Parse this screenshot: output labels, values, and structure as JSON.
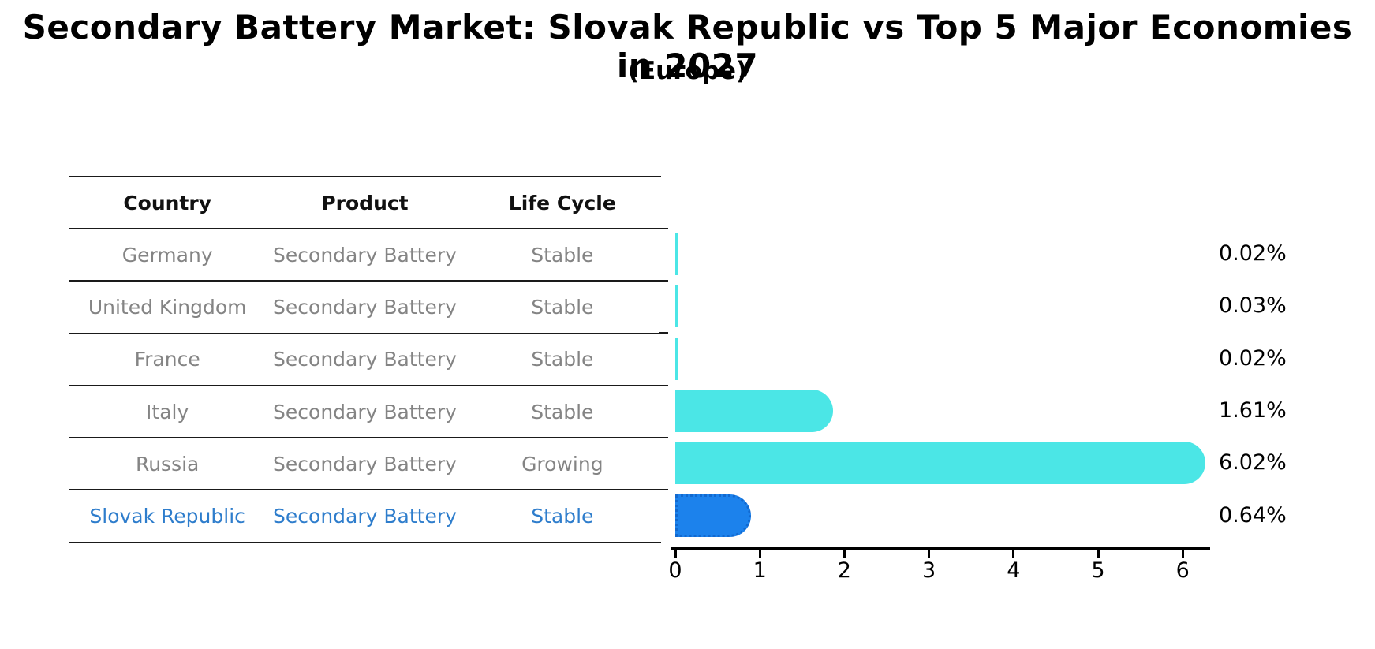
{
  "page": {
    "title": "Secondary Battery Market: Slovak Republic vs Top 5 Major Economies in 2027",
    "subtitle": "(Europe)"
  },
  "table": {
    "columns": [
      "Country",
      "Product",
      "Life Cycle"
    ],
    "rows": [
      {
        "country": "Germany",
        "product": "Secondary Battery",
        "life_cycle": "Stable",
        "highlight": false
      },
      {
        "country": "United Kingdom",
        "product": "Secondary Battery",
        "life_cycle": "Stable",
        "highlight": false
      },
      {
        "country": "France",
        "product": "Secondary Battery",
        "life_cycle": "Stable",
        "highlight": false
      },
      {
        "country": "Italy",
        "product": "Secondary Battery",
        "life_cycle": "Stable",
        "highlight": false
      },
      {
        "country": "Russia",
        "product": "Secondary Battery",
        "life_cycle": "Growing",
        "highlight": false
      },
      {
        "country": "Slovak Republic",
        "product": "Secondary Battery",
        "life_cycle": "Stable",
        "highlight": true
      }
    ]
  },
  "chart_data": {
    "type": "bar",
    "orientation": "horizontal",
    "title": "Secondary Battery Market: Slovak Republic vs Top 5 Major Economies in 2027",
    "subtitle": "(Europe)",
    "categories": [
      "Germany",
      "United Kingdom",
      "France",
      "Italy",
      "Russia",
      "Slovak Republic"
    ],
    "values": [
      0.02,
      0.03,
      0.02,
      1.61,
      6.02,
      0.64
    ],
    "value_labels": [
      "0.02%",
      "0.03%",
      "0.02%",
      "1.61%",
      "6.02%",
      "0.64%"
    ],
    "x_ticks": [
      0,
      1,
      2,
      3,
      4,
      5,
      6
    ],
    "xlim": [
      0,
      6.35
    ],
    "grid": false,
    "legend": false,
    "highlight_index": 5,
    "colors": {
      "bar": "#4BE6E6",
      "highlight_bar": "#1C82EC",
      "highlight_border": "#1269cf",
      "highlight_text": "#2e7dcc",
      "row_text": "#848484",
      "axis": "#000000",
      "table_line": "#1a1a1a",
      "label_text": "#000000"
    }
  }
}
